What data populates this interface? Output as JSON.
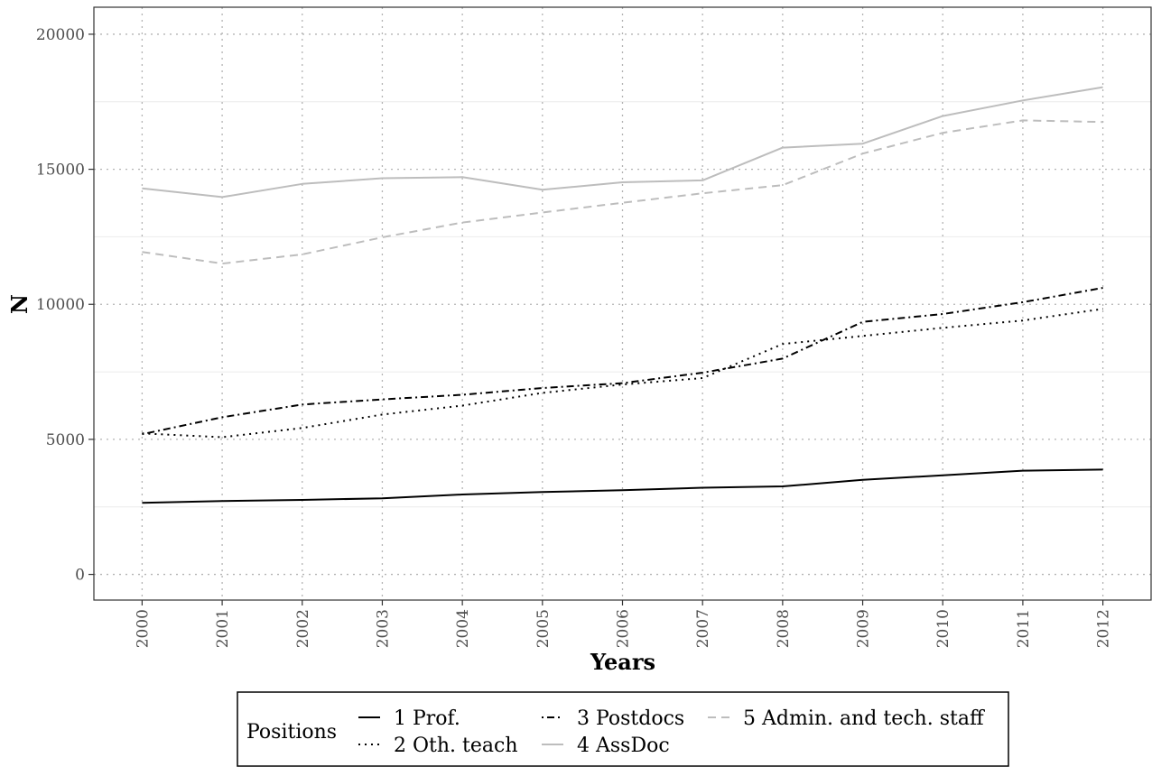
{
  "chart_data": {
    "type": "line",
    "xlabel": "Years",
    "ylabel": "N",
    "ylim": [
      -950,
      21000
    ],
    "yticks": [
      0,
      5000,
      10000,
      15000,
      20000
    ],
    "ytick_labels": [
      "0",
      "5000",
      "10000",
      "15000",
      "20000"
    ],
    "x": [
      "2000",
      "2001",
      "2002",
      "2003",
      "2004",
      "2005",
      "2006",
      "2007",
      "2008",
      "2009",
      "2010",
      "2011",
      "2012"
    ],
    "grid": true,
    "legend_position": "bottom",
    "legend_title": "Positions",
    "series": [
      {
        "name": "1 Prof.",
        "color": "#000000",
        "dash": "solid",
        "values": [
          2650,
          2720,
          2760,
          2820,
          2960,
          3050,
          3120,
          3210,
          3260,
          3500,
          3670,
          3840,
          3880
        ]
      },
      {
        "name": "2 Oth. teach",
        "color": "#000000",
        "dash": "dotted",
        "values": [
          5220,
          5080,
          5420,
          5920,
          6250,
          6720,
          7030,
          7270,
          8530,
          8830,
          9130,
          9400,
          9830
        ]
      },
      {
        "name": "3 Postdocs",
        "color": "#000000",
        "dash": "dashdot",
        "values": [
          5190,
          5820,
          6290,
          6480,
          6650,
          6900,
          7080,
          7470,
          7990,
          9350,
          9640,
          10080,
          10610
        ]
      },
      {
        "name": "4 AssDoc",
        "color": "#bdbdbd",
        "dash": "solid",
        "values": [
          14290,
          13970,
          14460,
          14670,
          14710,
          14240,
          14520,
          14590,
          15800,
          15950,
          16970,
          17550,
          18040
        ]
      },
      {
        "name": "5 Admin. and tech. staff",
        "color": "#bdbdbd",
        "dash": "dashed",
        "values": [
          11940,
          11510,
          11850,
          12480,
          13030,
          13400,
          13760,
          14110,
          14410,
          15580,
          16350,
          16810,
          16750
        ]
      }
    ]
  }
}
